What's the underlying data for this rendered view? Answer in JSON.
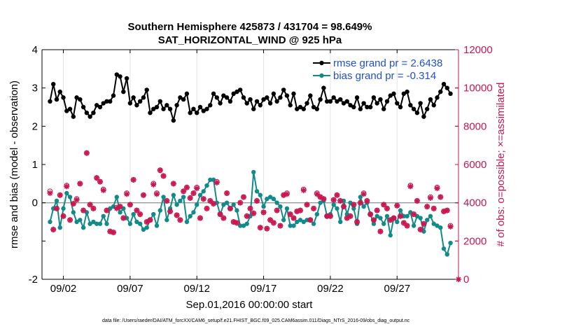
{
  "chart_data": {
    "type": "line",
    "title": "Southern Hemisphere 425873 / 431704 = 98.649%",
    "subtitle": "SAT_HORIZONTAL_WIND @ 925 hPa",
    "xlabel": "Sep.01,2016 00:00:00 start",
    "ylabel_left": "rmse and bias (model - observation)",
    "ylabel_right": "# of obs: o=possible; ×=assimilated",
    "footnote": "data file: /Users/raeder/DAI/ATM_forcXX/CAM6_setup/f.e21.FHIST_BGC.f09_025.CAM6assim.011/Diags_NTrS_2016-09/obs_diag_output.nc",
    "ylim_left": [
      -2,
      4
    ],
    "yticks_left": [
      "-2",
      "0",
      "1",
      "2",
      "3",
      "4"
    ],
    "ylim_right": [
      0,
      12000
    ],
    "yticks_right": [
      "0",
      "2000",
      "4000",
      "6000",
      "8000",
      "10000",
      "12000"
    ],
    "xlim": [
      0.4,
      31.6
    ],
    "xticks": [
      {
        "x": 2,
        "label": "09/02"
      },
      {
        "x": 7,
        "label": "09/07"
      },
      {
        "x": 12,
        "label": "09/12"
      },
      {
        "x": 17,
        "label": "09/17"
      },
      {
        "x": 22,
        "label": "09/22"
      },
      {
        "x": 27,
        "label": "09/27"
      }
    ],
    "grid": true,
    "legend_position": "top-right",
    "x": [
      1.0,
      1.25,
      1.5,
      1.75,
      2.0,
      2.25,
      2.5,
      2.75,
      3.0,
      3.25,
      3.5,
      3.75,
      4.0,
      4.25,
      4.5,
      4.75,
      5.0,
      5.25,
      5.5,
      5.75,
      6.0,
      6.25,
      6.5,
      6.75,
      7.0,
      7.25,
      7.5,
      7.75,
      8.0,
      8.25,
      8.5,
      8.75,
      9.0,
      9.25,
      9.5,
      9.75,
      10.0,
      10.25,
      10.5,
      10.75,
      11.0,
      11.25,
      11.5,
      11.75,
      12.0,
      12.25,
      12.5,
      12.75,
      13.0,
      13.25,
      13.5,
      13.75,
      14.0,
      14.25,
      14.5,
      14.75,
      15.0,
      15.25,
      15.5,
      15.75,
      16.0,
      16.25,
      16.5,
      16.75,
      17.0,
      17.25,
      17.5,
      17.75,
      18.0,
      18.25,
      18.5,
      18.75,
      19.0,
      19.25,
      19.5,
      19.75,
      20.0,
      20.25,
      20.5,
      20.75,
      21.0,
      21.25,
      21.5,
      21.75,
      22.0,
      22.25,
      22.5,
      22.75,
      23.0,
      23.25,
      23.5,
      23.75,
      24.0,
      24.25,
      24.5,
      24.75,
      25.0,
      25.25,
      25.5,
      25.75,
      26.0,
      26.25,
      26.5,
      26.75,
      27.0,
      27.25,
      27.5,
      27.75,
      28.0,
      28.25,
      28.5,
      28.75,
      29.0,
      29.25,
      29.5,
      29.75,
      30.0,
      30.25,
      30.5,
      30.75,
      31.0
    ],
    "series": [
      {
        "name": "rmse grand pr = 2.6438",
        "axis": "left",
        "color": "#000000",
        "marker": "filled-circle",
        "values": [
          2.65,
          3.1,
          2.7,
          2.9,
          2.75,
          2.4,
          2.45,
          2.25,
          2.75,
          2.7,
          2.5,
          2.35,
          2.25,
          2.35,
          2.55,
          2.5,
          2.6,
          2.65,
          2.65,
          2.8,
          3.35,
          3.3,
          2.9,
          3.25,
          2.6,
          2.75,
          2.55,
          2.65,
          2.75,
          2.95,
          2.35,
          2.45,
          2.5,
          2.65,
          2.45,
          2.55,
          2.45,
          2.15,
          2.55,
          2.75,
          2.7,
          2.85,
          2.35,
          2.45,
          2.35,
          2.5,
          2.4,
          2.45,
          2.55,
          2.85,
          2.75,
          2.6,
          2.8,
          2.75,
          2.65,
          2.85,
          2.9,
          2.95,
          2.75,
          2.6,
          2.7,
          2.45,
          2.65,
          2.55,
          2.7,
          2.75,
          2.6,
          2.85,
          2.65,
          2.75,
          2.95,
          2.8,
          2.55,
          2.85,
          2.45,
          2.5,
          2.45,
          2.6,
          2.8,
          2.5,
          2.45,
          2.7,
          3.0,
          2.65,
          2.65,
          2.75,
          2.65,
          2.7,
          2.6,
          2.65,
          2.55,
          2.5,
          2.75,
          2.45,
          2.6,
          2.5,
          2.5,
          2.75,
          2.6,
          2.7,
          2.45,
          2.65,
          2.8,
          2.85,
          2.6,
          2.5,
          2.85,
          2.9,
          2.55,
          2.45,
          2.35,
          2.6,
          2.25,
          2.45,
          2.7,
          2.55,
          2.75,
          2.9,
          3.1,
          3.0,
          2.85
        ]
      },
      {
        "name": "bias grand pr = -0.314",
        "axis": "left",
        "color": "#138a8a",
        "marker": "filled-circle",
        "values": [
          -0.5,
          -0.15,
          0.05,
          -0.65,
          -0.15,
          0.25,
          0.15,
          -0.25,
          -0.5,
          -0.45,
          -0.65,
          -0.25,
          -0.55,
          -0.5,
          -0.55,
          -0.55,
          -0.35,
          -0.55,
          -0.15,
          -0.1,
          0.15,
          -0.25,
          -0.15,
          -0.4,
          -0.55,
          -0.3,
          -0.5,
          -0.55,
          -0.7,
          -0.65,
          -0.45,
          -0.3,
          -0.6,
          -0.2,
          0.15,
          -0.45,
          -0.15,
          0.2,
          -0.05,
          0.05,
          0.15,
          -0.5,
          -0.35,
          -0.25,
          -0.05,
          0.2,
          0.3,
          0.45,
          0.6,
          0.6,
          0.0,
          -0.3,
          -0.05,
          0.0,
          -0.15,
          -0.05,
          -0.2,
          -0.6,
          -0.6,
          -0.55,
          -0.35,
          0.8,
          0.3,
          0.2,
          -0.1,
          0.1,
          0.15,
          0.1,
          0.0,
          -0.1,
          -0.45,
          -0.15,
          -0.6,
          -0.6,
          -0.5,
          -0.45,
          -0.5,
          -0.45,
          -0.45,
          -0.55,
          -0.3,
          0.0,
          0.05,
          -0.35,
          -0.3,
          -0.05,
          -0.15,
          -0.5,
          0.05,
          -0.3,
          0.0,
          -0.15,
          -0.55,
          0.15,
          -0.1,
          0.0,
          -0.3,
          -0.55,
          -0.35,
          -0.4,
          -0.55,
          -0.35,
          -0.85,
          -0.4,
          -0.5,
          -0.2,
          -0.35,
          -0.35,
          -0.25,
          -0.6,
          -0.35,
          -0.4,
          -0.75,
          -0.45,
          -0.35,
          -0.55,
          -0.6,
          -0.65,
          -1.2,
          -1.35,
          -1.05
        ]
      },
      {
        "name": "obs possible",
        "axis": "right",
        "color": "#c8174f",
        "marker": "open-circle",
        "values": [
          4600,
          2600,
          3700,
          4400,
          3300,
          4900,
          3100,
          3950,
          4200,
          5000,
          3600,
          6600,
          3900,
          3700,
          5300,
          5100,
          4700,
          3600,
          2500,
          2450,
          3750,
          3800,
          3200,
          4500,
          3900,
          5200,
          3600,
          3400,
          4400,
          3000,
          3100,
          5000,
          4500,
          5700,
          5400,
          4100,
          3550,
          5000,
          3350,
          3100,
          4600,
          4800,
          4250,
          4500,
          4800,
          3200,
          4200,
          3700,
          4100,
          3950,
          5100,
          3400,
          3200,
          4500,
          3700,
          3000,
          2950,
          4000,
          4300,
          3300,
          3700,
          3450,
          4100,
          2700,
          3500,
          2650,
          3100,
          2950,
          3600,
          2800,
          4400,
          4500,
          3400,
          3200,
          3550,
          3600,
          4700,
          3900,
          3100,
          3700,
          4500,
          4300,
          4200,
          3300,
          3300,
          4150,
          4400,
          4100,
          3800,
          3200,
          3300,
          3900,
          3000,
          4000,
          4500,
          4100,
          3400,
          3100,
          3600,
          2500,
          3900,
          3700,
          3100,
          3200,
          3850,
          3300,
          2950,
          2800,
          4900,
          3400,
          4100,
          2600,
          2900,
          3800,
          4300,
          3700,
          4800,
          4300,
          3550,
          3600,
          2800
        ]
      },
      {
        "name": "obs assimilated",
        "axis": "right",
        "color": "#c8174f",
        "marker": "asterisk",
        "values": [
          4500,
          2600,
          3700,
          4400,
          3300,
          4850,
          3100,
          3950,
          4150,
          5000,
          3600,
          6600,
          3900,
          3700,
          5300,
          5100,
          4650,
          3600,
          2500,
          2450,
          3700,
          3800,
          3200,
          4450,
          3900,
          5200,
          3600,
          3400,
          4400,
          3000,
          3100,
          4950,
          4450,
          5700,
          5400,
          4100,
          3550,
          5000,
          3350,
          3100,
          4600,
          4800,
          4250,
          4500,
          4750,
          3200,
          4200,
          3700,
          4100,
          3950,
          5050,
          3400,
          3200,
          4500,
          3700,
          3000,
          2950,
          4000,
          4300,
          3300,
          3700,
          3450,
          4100,
          2700,
          3500,
          2650,
          3100,
          2950,
          3600,
          2800,
          4400,
          4450,
          3400,
          3200,
          3550,
          3600,
          4650,
          3900,
          3100,
          3700,
          4450,
          4300,
          4200,
          3300,
          3300,
          4150,
          4400,
          4100,
          3800,
          3200,
          3300,
          3900,
          3000,
          4000,
          4450,
          4100,
          3400,
          3100,
          3600,
          2500,
          3900,
          3700,
          3100,
          3200,
          3850,
          3300,
          2950,
          2800,
          4850,
          3400,
          4100,
          2600,
          2900,
          3800,
          4250,
          3700,
          4750,
          4300,
          3550,
          3600,
          2750
        ]
      }
    ],
    "reference_line": {
      "y": 0,
      "color": "#999999"
    },
    "colors": {
      "left_axis": "#000000",
      "right_axis": "#c8174f",
      "rmse": "#000000",
      "bias": "#138a8a",
      "obs": "#c8174f",
      "legend_text": "#1f4fd6"
    }
  }
}
